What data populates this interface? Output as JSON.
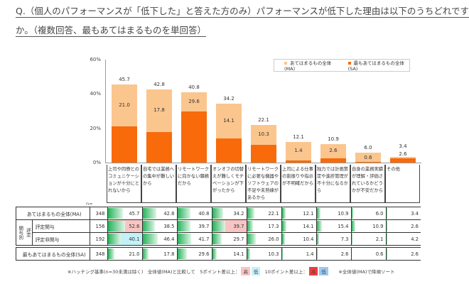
{
  "question": {
    "line1": "Q.（個人のパフォーマンスが「低下した」と答えた方のみ）パフォーマンスが低下した理由は以下のうちどれですか。",
    "line1a": "Q.（個人のパフォーマンスが「低下した」と答えた方のみ）パフォーマンスが低下した理由は以下のうちどれです",
    "line1b": "か。（複数回答、最もあてはまるものを単回答）"
  },
  "chart_data": {
    "type": "bar",
    "categories": [
      "上司や同僚とのコミュニケーションが十分にとれないから",
      "自宅では業務への集中が難しいから",
      "リモートワークに向かない職務だから",
      "オンオフの切替えが難しくモチベーションが下がったから",
      "リモートワークに必要な機器やソフトウェアの不足や未熟練があるから",
      "上司による仕事の割振りや指示が不明確だから",
      "独力では計画策定や進捗管理が不十分になるから",
      "自身の業務実績が理解・評価されているかどうかが不安だから",
      "その他"
    ],
    "series": [
      {
        "name": "あてはまるもの全体(MA)",
        "values": [
          45.7,
          42.8,
          40.8,
          34.2,
          22.1,
          12.1,
          10.9,
          6.0,
          3.4
        ],
        "color": "#fbc58e"
      },
      {
        "name": "最もあてはまるもの全体(SA)",
        "values": [
          21.0,
          17.8,
          29.6,
          14.1,
          10.3,
          1.4,
          2.6,
          0.6,
          2.6
        ],
        "color": "#f86a0a"
      }
    ],
    "yticks": [
      "60%",
      "40%",
      "20%",
      "0%"
    ],
    "ylim": [
      0,
      60
    ],
    "grid": false,
    "legend": "top-right"
  },
  "table": {
    "n_header": "n=",
    "group_label": "関与別",
    "subgroup_label": "評定",
    "rows": [
      {
        "label": "あてはまるもの全体(MA)",
        "n": "348",
        "values": [
          45.7,
          42.8,
          40.8,
          34.2,
          22.1,
          12.1,
          10.9,
          6.0,
          3.4
        ],
        "highlight": [
          null,
          null,
          null,
          null,
          null,
          null,
          null,
          null,
          null
        ]
      },
      {
        "label": "評定関与",
        "n": "156",
        "values": [
          52.6,
          38.5,
          39.7,
          39.7,
          17.3,
          14.1,
          15.4,
          10.9,
          2.6
        ],
        "highlight": [
          "high5",
          null,
          null,
          "high5",
          null,
          null,
          null,
          null,
          null
        ]
      },
      {
        "label": "評定非関与",
        "n": "192",
        "values": [
          40.1,
          46.4,
          41.7,
          29.7,
          26.0,
          10.4,
          7.3,
          2.1,
          4.2
        ],
        "highlight": [
          "low5",
          null,
          null,
          null,
          null,
          null,
          null,
          null,
          null
        ]
      },
      {
        "label": "最もあてはまるもの全体(SA)",
        "n": "348",
        "values": [
          21.0,
          17.8,
          29.6,
          14.1,
          10.3,
          1.4,
          2.6,
          0.6,
          2.6
        ],
        "highlight": [
          null,
          null,
          null,
          null,
          null,
          null,
          null,
          null,
          null
        ]
      }
    ],
    "colors": {
      "high5": "#f9c4c4",
      "low5": "#c4f1f9",
      "high10": "#f23c3c",
      "low10": "#9cc8f4"
    }
  },
  "footer": {
    "note1": "※ハッチング基準(n=30未満は除く)　全体値(MA)と比較して　5ポイント差以上：",
    "high": "高",
    "low": "低",
    "note2": "10ポイント差以上：",
    "note3": "※全体値(MA)で降順ソート"
  }
}
